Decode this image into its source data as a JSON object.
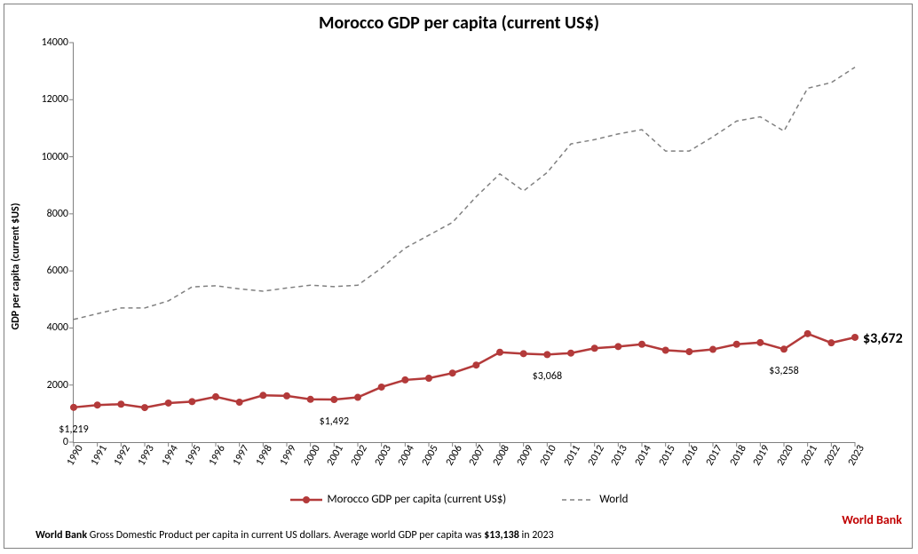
{
  "chart": {
    "type": "line",
    "title": "Morocco GDP per capita (current US$)",
    "title_fontsize": 20,
    "ylabel": "GDP per capita (current $US)",
    "label_fontsize": 12,
    "background_color": "#ffffff",
    "frame_border_color": "#808080",
    "axis_color": "#808080",
    "tick_color": "#808080",
    "tick_length": 5,
    "tick_fontsize": 12,
    "ylim": [
      0,
      14000
    ],
    "ytick_step": 2000,
    "yticks": [
      0,
      2000,
      4000,
      6000,
      8000,
      10000,
      12000,
      14000
    ],
    "xticks_rotation_deg": -60,
    "years": [
      1990,
      1991,
      1992,
      1993,
      1994,
      1995,
      1996,
      1997,
      1998,
      1999,
      2000,
      2001,
      2002,
      2003,
      2004,
      2005,
      2006,
      2007,
      2008,
      2009,
      2010,
      2011,
      2012,
      2013,
      2014,
      2015,
      2016,
      2017,
      2018,
      2019,
      2020,
      2021,
      2022,
      2023
    ],
    "series": {
      "morocco": {
        "label": "Morocco GDP per capita (current US$)",
        "color": "#b33a3a",
        "line_width": 2.5,
        "marker": "circle",
        "marker_size": 4,
        "dash": "solid",
        "values": [
          1219,
          1300,
          1330,
          1210,
          1370,
          1420,
          1590,
          1400,
          1640,
          1620,
          1500,
          1492,
          1570,
          1930,
          2180,
          2240,
          2420,
          2700,
          3150,
          3100,
          3068,
          3120,
          3290,
          3350,
          3430,
          3220,
          3170,
          3250,
          3430,
          3490,
          3258,
          3800,
          3480,
          3672
        ]
      },
      "world": {
        "label": "World",
        "color": "#808080",
        "line_width": 1.5,
        "marker": "none",
        "dash": "5,4",
        "values": [
          4300,
          4500,
          4700,
          4700,
          4950,
          5440,
          5480,
          5370,
          5290,
          5400,
          5500,
          5450,
          5500,
          6100,
          6800,
          7250,
          7700,
          8600,
          9400,
          8800,
          9450,
          10450,
          10600,
          10800,
          10950,
          10200,
          10200,
          10700,
          11250,
          11400,
          10900,
          12400,
          12600,
          13138
        ]
      }
    },
    "data_labels": [
      {
        "series": "morocco",
        "year": 1990,
        "text": "$1,219",
        "dy": 18
      },
      {
        "series": "morocco",
        "year": 2001,
        "text": "$1,492",
        "dy": 18
      },
      {
        "series": "morocco",
        "year": 2010,
        "text": "$3,068",
        "dy": 18
      },
      {
        "series": "morocco",
        "year": 2020,
        "text": "$3,258",
        "dy": 18
      }
    ],
    "final_label": {
      "series": "morocco",
      "text": "$3,672",
      "fontsize": 16,
      "dx": 10,
      "dy": -8
    },
    "legend": {
      "position": "bottom",
      "fontsize": 13
    }
  },
  "footer": {
    "prefix_bold": "World Bank",
    "mid": " Gross Domestic Product per capita in current US dollars.  Average world GDP per capita was ",
    "figure_bold": "$13,138",
    "suffix": " in 2023",
    "fontsize": 12
  },
  "source": {
    "text": "World Bank",
    "color": "#c00000",
    "fontsize": 14
  }
}
